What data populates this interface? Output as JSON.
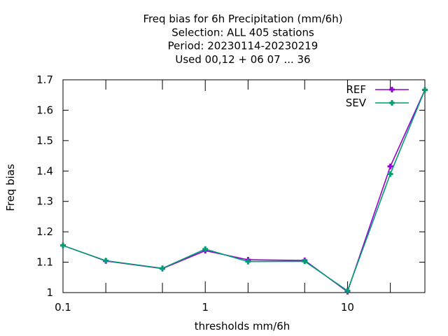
{
  "chart_data": {
    "type": "line",
    "title_lines": [
      "Freq bias  for 6h Precipitation (mm/6h)",
      "Selection: ALL    405 stations",
      "Period: 20230114-20230219",
      "Used  00,12  + 06 07 ... 36"
    ],
    "xlabel": "thresholds mm/6h",
    "ylabel": "Freq bias",
    "x_scale": "log",
    "xlim": [
      0.1,
      35
    ],
    "ylim": [
      1.0,
      1.7
    ],
    "x_ticks": [
      0.1,
      1,
      10
    ],
    "x_tick_labels": [
      "0.1",
      "1",
      "10"
    ],
    "x_minor_ticks": [
      0.2,
      0.5,
      2,
      5,
      20
    ],
    "y_ticks": [
      1.0,
      1.1,
      1.2,
      1.3,
      1.4,
      1.5,
      1.6,
      1.7
    ],
    "y_tick_labels": [
      "1",
      "1.1",
      "1.2",
      "1.3",
      "1.4",
      "1.5",
      "1.6",
      "1.7"
    ],
    "grid": false,
    "legend_position": "top-right",
    "x": [
      0.1,
      0.2,
      0.5,
      1,
      2,
      5,
      10,
      20,
      35
    ],
    "series": [
      {
        "name": "REF",
        "color": "#9400d3",
        "values": [
          1.155,
          1.104,
          1.079,
          1.138,
          1.108,
          1.106,
          1.003,
          1.415,
          1.667
        ]
      },
      {
        "name": "SEV",
        "color": "#009e73",
        "values": [
          1.155,
          1.105,
          1.08,
          1.143,
          1.102,
          1.103,
          1.006,
          1.39,
          1.667
        ]
      }
    ]
  }
}
